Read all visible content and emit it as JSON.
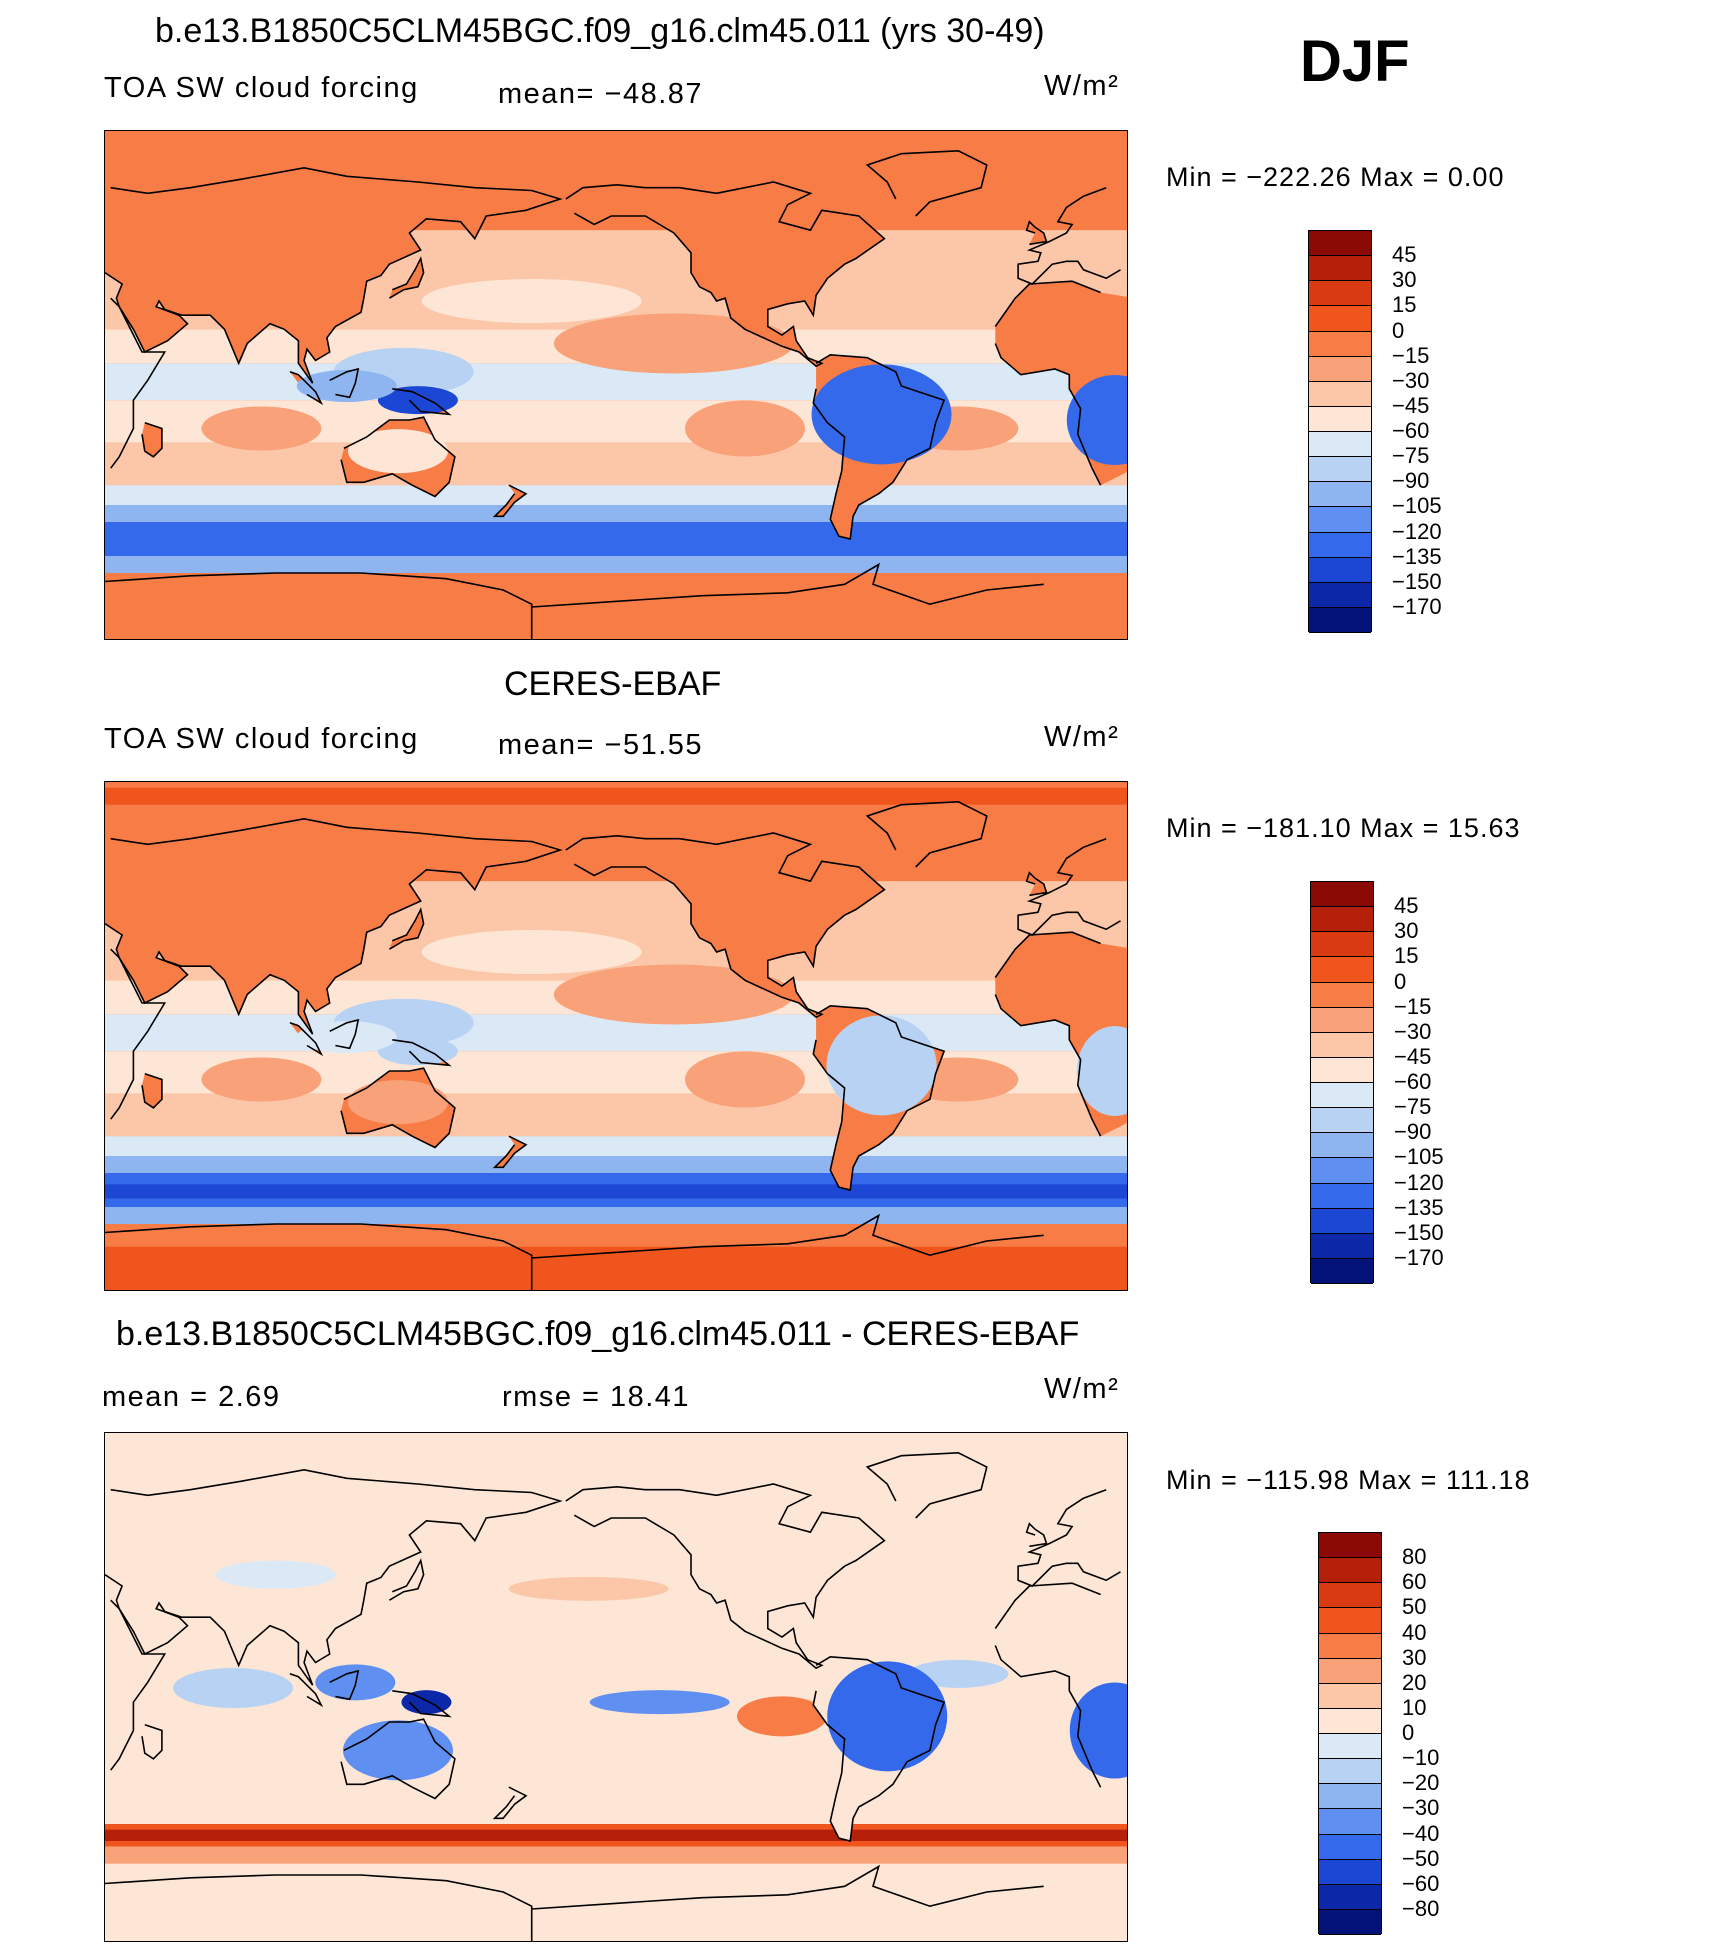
{
  "season": "DJF",
  "panels": [
    {
      "title": "b.e13.B1850C5CLM45BGC.f09_g16.clm45.011 (yrs 30-49)",
      "left_label": "TOA SW cloud forcing",
      "center_label": "mean= −48.87",
      "units": "W/m²",
      "minmax": "Min = −222.26 Max =   0.00",
      "map_name": "model-map",
      "scale": "abs"
    },
    {
      "title": "CERES-EBAF",
      "left_label": "TOA SW cloud forcing",
      "center_label": "mean= −51.55",
      "units": "W/m²",
      "minmax": "Min = −181.10 Max =  15.63",
      "map_name": "observation-map",
      "scale": "abs"
    },
    {
      "title": "b.e13.B1850C5CLM45BGC.f09_g16.clm45.011 - CERES-EBAF",
      "left_label": "mean =    2.69",
      "center_label": "rmse =   18.41",
      "units": "W/m²",
      "minmax": "Min = −115.98 Max = 111.18",
      "map_name": "difference-map",
      "scale": "diff"
    }
  ],
  "colorbars": {
    "abs": {
      "labels": [
        "45",
        "30",
        "15",
        "0",
        "−15",
        "−30",
        "−45",
        "−60",
        "−75",
        "−90",
        "−105",
        "−120",
        "−135",
        "−150",
        "−170"
      ],
      "colors": [
        "#8b0a05",
        "#b5200a",
        "#d93a12",
        "#f0551e",
        "#f77c45",
        "#f9a178",
        "#fbc7a8",
        "#fde6d5",
        "#dbe9f7",
        "#b8d2f4",
        "#8fb5f0",
        "#5f8ff0",
        "#3569ec",
        "#1c46d4",
        "#0c27a8",
        "#04137a"
      ]
    },
    "diff": {
      "labels": [
        "80",
        "60",
        "50",
        "40",
        "30",
        "20",
        "10",
        "0",
        "−10",
        "−20",
        "−30",
        "−40",
        "−50",
        "−60",
        "−80"
      ],
      "colors": [
        "#8b0a05",
        "#b5200a",
        "#d93a12",
        "#f0551e",
        "#f77c45",
        "#f9a178",
        "#fbc7a8",
        "#fde6d5",
        "#dbe9f7",
        "#b8d2f4",
        "#8fb5f0",
        "#5f8ff0",
        "#3569ec",
        "#1c46d4",
        "#0c27a8",
        "#04137a"
      ]
    }
  }
}
